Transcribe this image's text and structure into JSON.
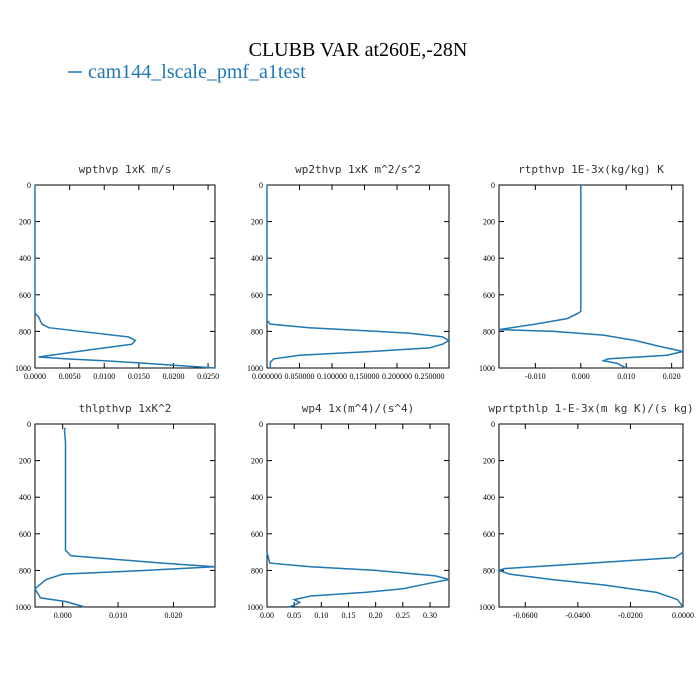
{
  "title": "CLUBB VAR at260E,-28N",
  "legend": {
    "name": "cam144_lscale_pmf_a1test",
    "color": "#1f77b4"
  },
  "chart_data": [
    {
      "type": "line",
      "title": "wpthvp  1xK m/s",
      "color": "#1f77b4",
      "y": [
        0,
        200,
        400,
        600,
        700,
        720,
        760,
        780,
        830,
        850,
        870,
        900,
        940,
        950,
        960,
        980,
        1000
      ],
      "values": [
        0,
        0,
        0,
        0,
        0,
        0.0005,
        0.001,
        0.002,
        0.0135,
        0.0145,
        0.014,
        0.008,
        0.0005,
        0.0046,
        0.01,
        0.018,
        0.026
      ],
      "xlim": [
        0,
        0.026
      ],
      "xticks": [
        {
          "value": 0,
          "label": "0.0000"
        },
        {
          "value": 0.005,
          "label": "0.0050"
        },
        {
          "value": 0.01,
          "label": "0.0100"
        },
        {
          "value": 0.015,
          "label": "0.0150"
        },
        {
          "value": 0.02,
          "label": "0.0200"
        },
        {
          "value": 0.025,
          "label": "0.0250"
        }
      ],
      "ylim": [
        1000,
        0
      ],
      "yticks": [
        0,
        200,
        400,
        600,
        800,
        1000
      ]
    },
    {
      "type": "line",
      "title": "wp2thvp  1xK m^2/s^2",
      "color": "#1f77b4",
      "y": [
        0,
        200,
        400,
        600,
        740,
        760,
        780,
        810,
        830,
        850,
        870,
        890,
        910,
        930,
        950,
        970,
        1000
      ],
      "values": [
        0,
        0,
        0,
        0,
        0,
        0.005,
        0.065,
        0.22,
        0.27,
        0.28,
        0.27,
        0.25,
        0.16,
        0.05,
        0.01,
        0.005,
        0.005
      ],
      "xlim": [
        0,
        0.28
      ],
      "xticks": [
        {
          "value": 0,
          "label": "0.000000"
        },
        {
          "value": 0.05,
          "label": "0.050000"
        },
        {
          "value": 0.1,
          "label": "0.100000"
        },
        {
          "value": 0.15,
          "label": "0.150000"
        },
        {
          "value": 0.2,
          "label": "0.200000"
        },
        {
          "value": 0.25,
          "label": "0.250000"
        }
      ],
      "ylim": [
        1000,
        0
      ],
      "yticks": [
        0,
        200,
        400,
        600,
        800,
        1000
      ]
    },
    {
      "type": "line",
      "title": "rtpthvp  1E-3x(kg/kg) K",
      "color": "#1f77b4",
      "y": [
        0,
        200,
        400,
        600,
        690,
        700,
        730,
        760,
        790,
        800,
        820,
        850,
        880,
        910,
        930,
        950,
        960,
        975,
        1000
      ],
      "values": [
        0,
        0,
        0,
        0,
        0,
        -0.0005,
        -0.003,
        -0.01,
        -0.018,
        -0.006,
        0.005,
        0.012,
        0.017,
        0.0225,
        0.019,
        0.006,
        0.005,
        0.008,
        0.01
      ],
      "xlim": [
        -0.018,
        0.0225
      ],
      "xticks": [
        {
          "value": -0.01,
          "label": "-0.010"
        },
        {
          "value": 0,
          "label": "0.000"
        },
        {
          "value": 0.01,
          "label": "0.010"
        },
        {
          "value": 0.02,
          "label": "0.020"
        }
      ],
      "ylim": [
        1000,
        0
      ],
      "yticks": [
        0,
        200,
        400,
        600,
        800,
        1000
      ]
    },
    {
      "type": "line",
      "title": "thlpthvp  1xK^2",
      "color": "#1f77b4",
      "y": [
        20,
        30,
        100,
        400,
        690,
        720,
        760,
        780,
        800,
        820,
        850,
        900,
        950,
        970,
        1000
      ],
      "values": [
        0.0005,
        0.0003,
        0.0005,
        0.0005,
        0.0005,
        0.0015,
        0.018,
        0.0275,
        0.015,
        0,
        -0.003,
        -0.005,
        -0.004,
        0.0005,
        0.004
      ],
      "xlim": [
        -0.005,
        0.0275
      ],
      "xticks": [
        {
          "value": 0,
          "label": "0.000"
        },
        {
          "value": 0.01,
          "label": "0.010"
        },
        {
          "value": 0.02,
          "label": "0.020"
        }
      ],
      "ylim": [
        1000,
        0
      ],
      "yticks": [
        0,
        200,
        400,
        600,
        800,
        1000
      ]
    },
    {
      "type": "line",
      "title": "wp4  1x(m^4)/(s^4)",
      "color": "#1f77b4",
      "y": [
        700,
        760,
        780,
        800,
        830,
        850,
        870,
        900,
        920,
        940,
        960,
        975,
        990,
        1000
      ],
      "values": [
        0,
        0.005,
        0.08,
        0.2,
        0.31,
        0.335,
        0.3,
        0.25,
        0.18,
        0.08,
        0.05,
        0.06,
        0.05,
        0.04
      ],
      "xlim": [
        0,
        0.335
      ],
      "xticks": [
        {
          "value": 0,
          "label": "0.00"
        },
        {
          "value": 0.05,
          "label": "0.05"
        },
        {
          "value": 0.1,
          "label": "0.10"
        },
        {
          "value": 0.15,
          "label": "0.15"
        },
        {
          "value": 0.2,
          "label": "0.20"
        },
        {
          "value": 0.25,
          "label": "0.25"
        },
        {
          "value": 0.3,
          "label": "0.30"
        }
      ],
      "ylim": [
        1000,
        0
      ],
      "yticks": [
        0,
        200,
        400,
        600,
        800,
        1000
      ]
    },
    {
      "type": "line",
      "title": "wprtpthlp  1-E-3x(m kg K)/(s kg)",
      "color": "#1f77b4",
      "y": [
        700,
        730,
        760,
        790,
        800,
        820,
        850,
        880,
        920,
        960,
        1000
      ],
      "values": [
        0,
        -0.003,
        -0.035,
        -0.068,
        -0.07,
        -0.066,
        -0.05,
        -0.03,
        -0.01,
        -0.002,
        0
      ],
      "xlim": [
        -0.07,
        0
      ],
      "xticks": [
        {
          "value": -0.06,
          "label": "-0.0600"
        },
        {
          "value": -0.04,
          "label": "-0.0400"
        },
        {
          "value": -0.02,
          "label": "-0.0200"
        },
        {
          "value": 0,
          "label": "0.0000"
        }
      ],
      "ylim": [
        1000,
        0
      ],
      "yticks": [
        0,
        200,
        400,
        600,
        800,
        1000
      ]
    }
  ]
}
